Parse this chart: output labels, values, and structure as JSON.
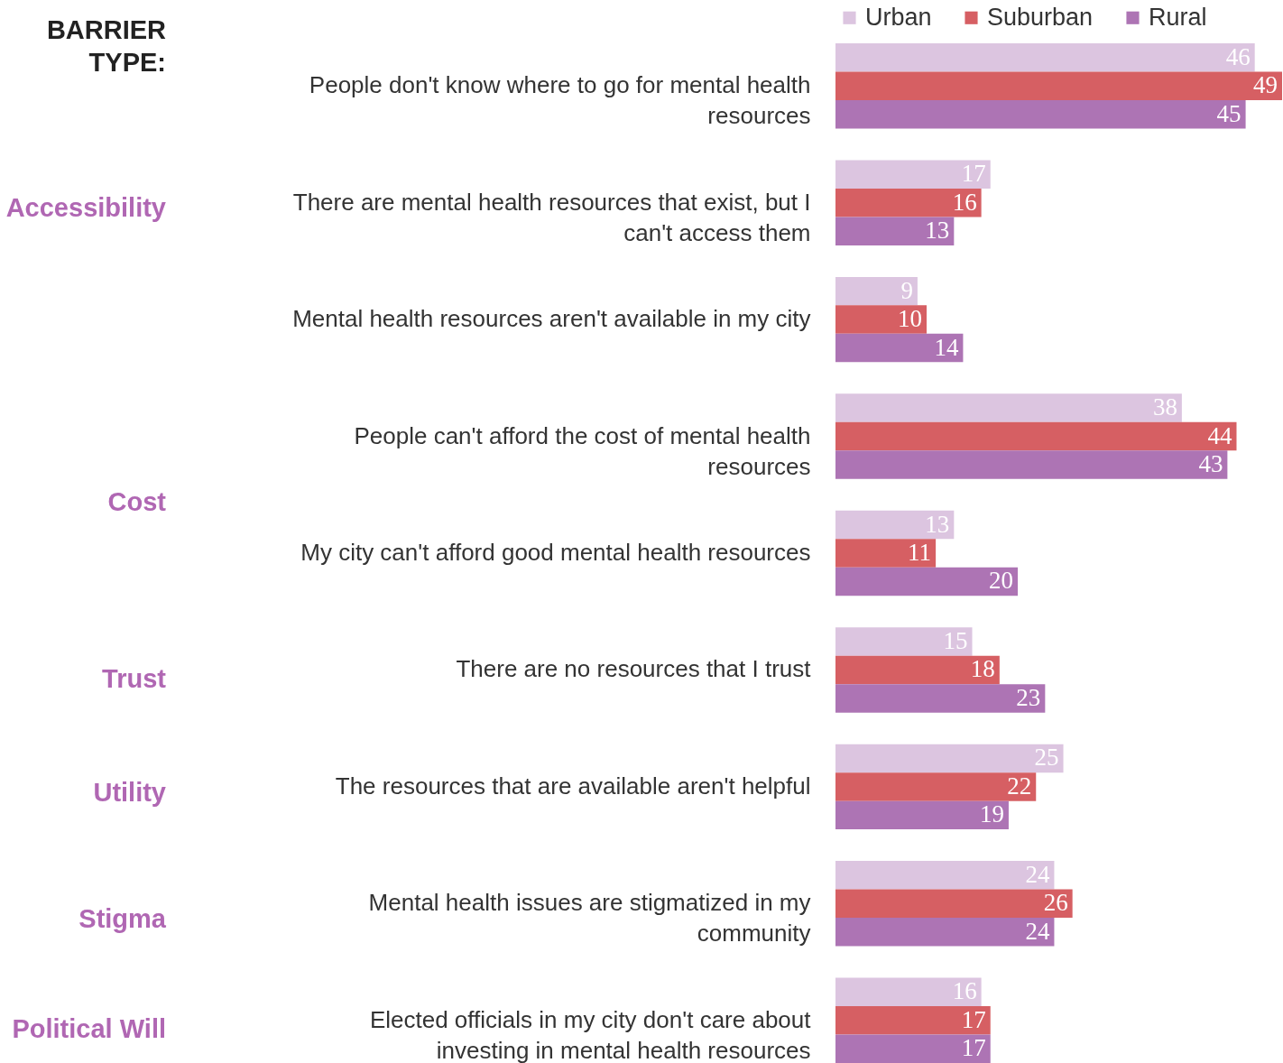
{
  "chart_data": {
    "type": "bar",
    "orientation": "horizontal",
    "data_labels": true,
    "legend": "top",
    "categories": [
      "People don't know where to go for mental health resources",
      "There are mental health resources that exist, but I can't access them",
      "Mental health resources aren't available in my city",
      "People can't afford the cost of mental health resources",
      "My city can't afford good mental health resources",
      "There are no resources that I trust",
      "The resources that are available aren't helpful",
      "Mental health issues are stigmatized in my community",
      "Elected officials in my city don't care about investing in mental health resources"
    ],
    "series": [
      {
        "name": "Urban",
        "color": "#dcc5e0",
        "values": [
          46,
          17,
          9,
          38,
          13,
          15,
          25,
          24,
          16
        ]
      },
      {
        "name": "Suburban",
        "color": "#d65f63",
        "values": [
          49,
          16,
          10,
          44,
          11,
          18,
          22,
          26,
          17
        ]
      },
      {
        "name": "Rural",
        "color": "#ad74b4",
        "values": [
          45,
          13,
          14,
          43,
          20,
          23,
          19,
          24,
          17
        ]
      }
    ],
    "annotations": [
      "BARRIER TYPE:",
      "Accessibility",
      "Cost",
      "Trust",
      "Utility",
      "Stigma",
      "Political Will"
    ]
  }
}
